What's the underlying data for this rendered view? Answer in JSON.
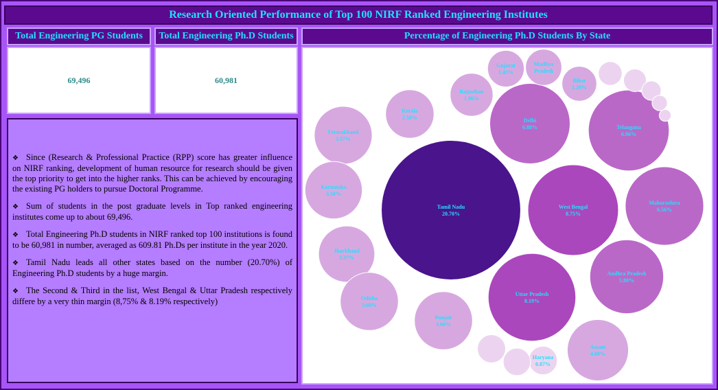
{
  "title": "Research Oriented Performance of Top 100 NIRF Ranked Engineering Institutes",
  "kpis": [
    {
      "label": "Total Engineering PG Students",
      "value": "69,496"
    },
    {
      "label": "Total Engineering Ph.D Students",
      "value": "60,981"
    }
  ],
  "chart_header": "Percentage of Engineering Ph.D Students By State",
  "notes": [
    "Since (Research & Professional Practice (RPP) score has greater influence on NIRF ranking, development of human resource for research should be given the top priority to get into the higher ranks. This can be achieved by encouraging the existing PG holders to pursue Doctoral Programme.",
    "Sum of students in the post graduate levels in Top ranked engineering institutes come up to about 69,496.",
    "Total Engineering Ph.D students in NIRF ranked top 100 institutions is found to be 60,981 in number, averaged as 609.81 Ph.Ds per institute in the year 2020.",
    "Tamil Nadu leads all other states based on the number (20.70%) of Engineering Ph.D students by a huge margin.",
    "The Second & Third in the list, West Bengal & Uttar Pradesh respectively differe by a very thin margin (8,75% & 8.19% respectively)"
  ],
  "colors": {
    "frame": "#a855f7",
    "header_bg": "#5b0a8f",
    "header_text": "#22e0ff",
    "kpi_text": "#2c8a8a",
    "notes_bg": "#b57dff",
    "bubble_top": "#4a148c",
    "bubble_high": "#ab47bc",
    "bubble_mid": "#ba68c8",
    "bubble_low": "#d7a8e0",
    "bubble_min": "#ecd4f0"
  },
  "chart_data": {
    "type": "bubble",
    "title": "Percentage of Engineering Ph.D Students By State",
    "series": [
      {
        "state": "Tamil Nadu",
        "label": "20.70%",
        "value": 20.7
      },
      {
        "state": "West Bengal",
        "label": "8.75%",
        "value": 8.75
      },
      {
        "state": "Uttar Pradesh",
        "label": "8.19%",
        "value": 8.19
      },
      {
        "state": "Telangana",
        "label": "6.96%",
        "value": 6.96
      },
      {
        "state": "Delhi",
        "label": "6.88%",
        "value": 6.88
      },
      {
        "state": "Maharashtra",
        "label": "6.56%",
        "value": 6.56
      },
      {
        "state": "Andhra Pradesh",
        "label": "5.80%",
        "value": 5.8
      },
      {
        "state": "Assam",
        "label": "4.00%",
        "value": 4.0
      },
      {
        "state": "Uttarakhand",
        "label": "3.57%",
        "value": 3.57
      },
      {
        "state": "Karnataka",
        "label": "3.50%",
        "value": 3.5
      },
      {
        "state": "Jharkhand",
        "label": "3.37%",
        "value": 3.37
      },
      {
        "state": "Odisha",
        "label": "3.60%",
        "value": 3.6
      },
      {
        "state": "Punjab",
        "label": "3.60%",
        "value": 3.6
      },
      {
        "state": "Kerala",
        "label": "2.50%",
        "value": 2.5
      },
      {
        "state": "Rajasthan",
        "label": "1.96%",
        "value": 1.96
      },
      {
        "state": "Gujarat",
        "label": "1.43%",
        "value": 1.43
      },
      {
        "state": "Madhya Pradesh",
        "label": "",
        "value": 1.4
      },
      {
        "state": "Bihar",
        "label": "1.29%",
        "value": 1.29
      },
      {
        "state": "Haryana",
        "label": "0.87%",
        "value": 0.87
      },
      {
        "state": "",
        "label": "",
        "value": 0.85
      },
      {
        "state": "",
        "label": "",
        "value": 0.8
      },
      {
        "state": "",
        "label": "",
        "value": 0.6
      },
      {
        "state": "",
        "label": "",
        "value": 0.55
      },
      {
        "state": "",
        "label": "",
        "value": 0.4
      },
      {
        "state": "",
        "label": "",
        "value": 0.25
      },
      {
        "state": "",
        "label": "",
        "value": 0.15
      }
    ]
  }
}
